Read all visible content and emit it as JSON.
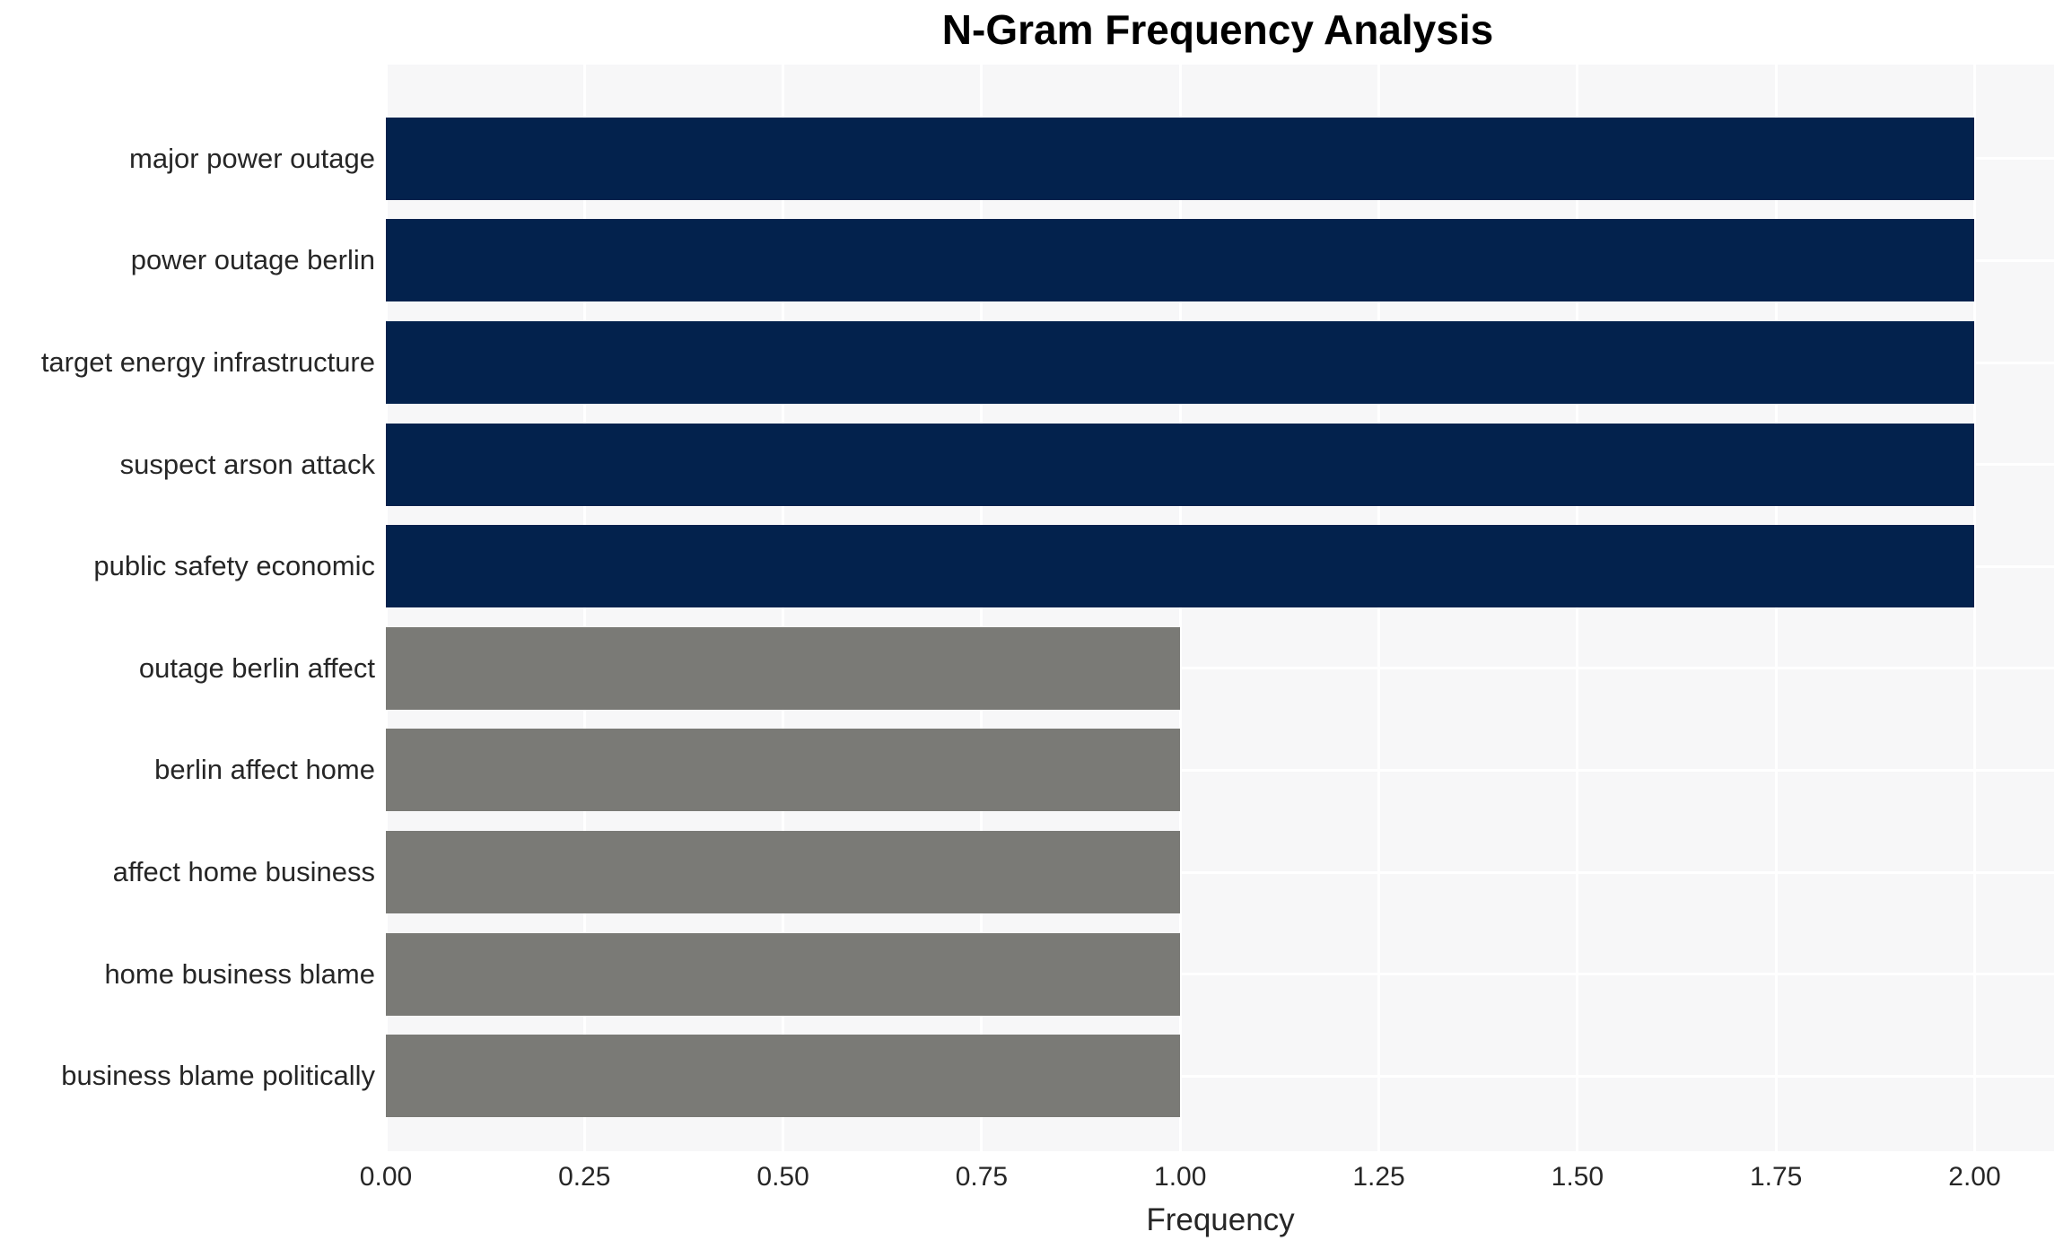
{
  "title": "N-Gram Frequency Analysis",
  "chart_data": {
    "type": "bar",
    "orientation": "horizontal",
    "title": "N-Gram Frequency Analysis",
    "xlabel": "Frequency",
    "ylabel": "",
    "categories": [
      "major power outage",
      "power outage berlin",
      "target energy infrastructure",
      "suspect arson attack",
      "public safety economic",
      "outage berlin affect",
      "berlin affect home",
      "affect home business",
      "home business blame",
      "business blame politically"
    ],
    "values": [
      2,
      2,
      2,
      2,
      2,
      1,
      1,
      1,
      1,
      1
    ],
    "bar_colors": [
      "#03224d",
      "#03224d",
      "#03224d",
      "#03224d",
      "#03224d",
      "#7a7a76",
      "#7a7a76",
      "#7a7a76",
      "#7a7a76",
      "#7a7a76"
    ],
    "xlim": [
      0,
      2.1
    ],
    "xticks": [
      0,
      0.25,
      0.5,
      0.75,
      1.0,
      1.25,
      1.5,
      1.75,
      2.0
    ],
    "xtick_labels": [
      "0.00",
      "0.25",
      "0.50",
      "0.75",
      "1.00",
      "1.25",
      "1.50",
      "1.75",
      "2.00"
    ],
    "grid": "on",
    "legend": "none",
    "colors": {
      "high_frequency_bar": "#03224d",
      "low_frequency_bar": "#7a7a76",
      "plot_background": "#f7f7f8",
      "gridline": "#ffffff",
      "text": "#262626",
      "title_text": "#000000"
    }
  }
}
